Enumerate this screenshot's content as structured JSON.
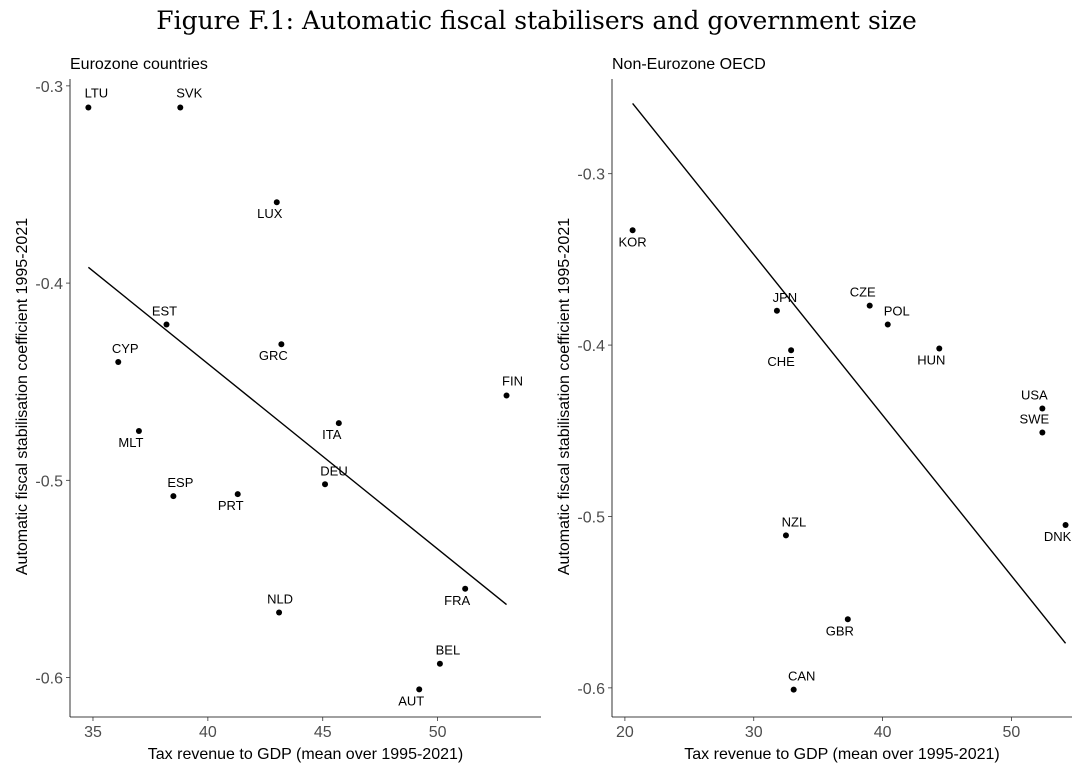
{
  "figure_title": "Figure F.1: Automatic fiscal stabilisers and government size",
  "chart_data": [
    {
      "type": "scatter",
      "title": "Eurozone countries",
      "xlabel": "Tax revenue to GDP (mean over 1995-2021)",
      "ylabel": "Automatic fiscal stabilisation coefficient 1995-2021",
      "xlim": [
        34,
        54.5
      ],
      "ylim": [
        -0.62,
        -0.295
      ],
      "xticks": [
        35,
        40,
        45,
        50
      ],
      "yticks": [
        -0.3,
        -0.4,
        -0.5,
        -0.6
      ],
      "xtick_labels": [
        "35",
        "40",
        "45",
        "50"
      ],
      "ytick_labels": [
        "-0.3",
        "-0.4",
        "-0.5",
        "-0.6"
      ],
      "grid": false,
      "points": [
        {
          "label": "LTU",
          "x": 34.8,
          "y": -0.311
        },
        {
          "label": "SVK",
          "x": 38.8,
          "y": -0.311
        },
        {
          "label": "LUX",
          "x": 43.0,
          "y": -0.359
        },
        {
          "label": "EST",
          "x": 38.2,
          "y": -0.421
        },
        {
          "label": "GRC",
          "x": 43.2,
          "y": -0.431
        },
        {
          "label": "CYP",
          "x": 36.1,
          "y": -0.44
        },
        {
          "label": "FIN",
          "x": 53.0,
          "y": -0.457
        },
        {
          "label": "ITA",
          "x": 45.7,
          "y": -0.471
        },
        {
          "label": "MLT",
          "x": 37.0,
          "y": -0.475
        },
        {
          "label": "DEU",
          "x": 45.1,
          "y": -0.502
        },
        {
          "label": "ESP",
          "x": 38.5,
          "y": -0.508
        },
        {
          "label": "PRT",
          "x": 41.3,
          "y": -0.507
        },
        {
          "label": "FRA",
          "x": 51.2,
          "y": -0.555
        },
        {
          "label": "NLD",
          "x": 43.1,
          "y": -0.567
        },
        {
          "label": "BEL",
          "x": 50.1,
          "y": -0.593
        },
        {
          "label": "AUT",
          "x": 49.2,
          "y": -0.606
        }
      ],
      "fit_line": {
        "x": [
          34.8,
          53.0
        ],
        "y": [
          -0.392,
          -0.563
        ]
      }
    },
    {
      "type": "scatter",
      "title": "Non-Eurozone OECD",
      "xlabel": "Tax revenue to GDP (mean over 1995-2021)",
      "ylabel": "Automatic fiscal stabilisation coefficient 1995-2021",
      "xlim": [
        19,
        54.7
      ],
      "ylim": [
        -0.617,
        -0.243
      ],
      "xticks": [
        20,
        30,
        40,
        50
      ],
      "yticks": [
        -0.3,
        -0.4,
        -0.5,
        -0.6
      ],
      "xtick_labels": [
        "20",
        "30",
        "40",
        "50"
      ],
      "ytick_labels": [
        "-0.3",
        "-0.4",
        "-0.5",
        "-0.6"
      ],
      "grid": false,
      "points": [
        {
          "label": "KOR",
          "x": 20.6,
          "y": -0.333
        },
        {
          "label": "JPN",
          "x": 31.8,
          "y": -0.38
        },
        {
          "label": "CZE",
          "x": 39.0,
          "y": -0.377
        },
        {
          "label": "POL",
          "x": 40.4,
          "y": -0.388
        },
        {
          "label": "CHE",
          "x": 32.9,
          "y": -0.403
        },
        {
          "label": "HUN",
          "x": 44.4,
          "y": -0.402
        },
        {
          "label": "USA",
          "x": 52.4,
          "y": -0.437
        },
        {
          "label": "SWE",
          "x": 52.4,
          "y": -0.451
        },
        {
          "label": "NZL",
          "x": 32.5,
          "y": -0.511
        },
        {
          "label": "DNK",
          "x": 54.2,
          "y": -0.505
        },
        {
          "label": "GBR",
          "x": 37.3,
          "y": -0.56
        },
        {
          "label": "CAN",
          "x": 33.1,
          "y": -0.601
        }
      ],
      "fit_line": {
        "x": [
          20.6,
          54.2
        ],
        "y": [
          -0.259,
          -0.574
        ]
      }
    }
  ]
}
